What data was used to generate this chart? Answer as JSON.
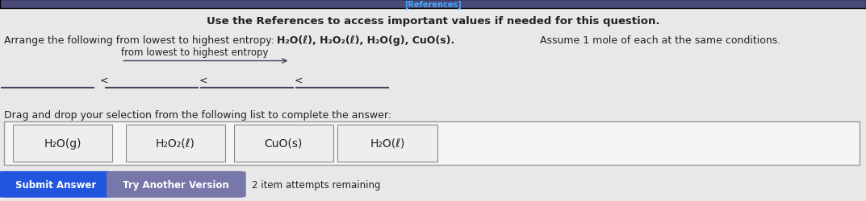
{
  "bg_color": "#e8e8e8",
  "top_bar_color": "#4a4a7a",
  "top_bar_text": "[References]",
  "top_bar_text_color": "#44aaff",
  "title_text": "Use the References to access important values if needed for this question.",
  "title_fontsize": 9.5,
  "arrange_line1": "Arrange the following from lowest to highest entropy: ",
  "arrange_chemicals": "H₂O(ℓ), H₂O₂(ℓ), H₂O(g), CuO(s).",
  "arrange_suffix": " Assume 1 mole of each at the same conditions.",
  "arrange_fontsize": 9.0,
  "label_text": "from lowest to highest entropy",
  "label_fontsize": 8.5,
  "drag_text": "Drag and drop your selection from the following list to complete the answer:",
  "drag_fontsize": 9.0,
  "choices": [
    "H₂O(g)",
    "H₂O₂(ℓ)",
    "CuO(s)",
    "H₂O(ℓ)"
  ],
  "choice_fontsize": 10,
  "outer_box_facecolor": "#f5f5f5",
  "outer_box_edgecolor": "#999999",
  "inner_box_facecolor": "#eeeeee",
  "inner_box_edgecolor": "#888888",
  "submit_btn_text": "Submit Answer",
  "submit_btn_color": "#2255dd",
  "try_btn_text": "Try Another Version",
  "try_btn_color": "#7777aa",
  "btn_text_color": "#ffffff",
  "btn_fontsize": 8.5,
  "remaining_text": "2 item attempts remaining",
  "remaining_fontsize": 8.5,
  "line_color": "#444466",
  "text_color": "#222222"
}
